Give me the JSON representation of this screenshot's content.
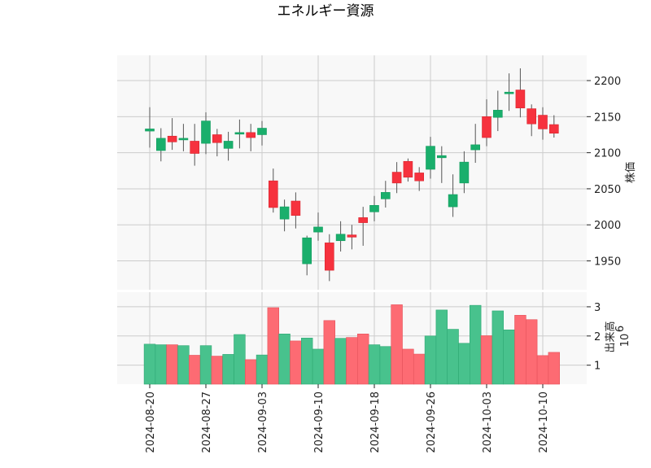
{
  "chart_data": {
    "type": "candlestick",
    "title": "エネルギー資源",
    "price_axis": {
      "label": "株価",
      "ylim": [
        1910,
        2235
      ],
      "ticks": [
        1950,
        2000,
        2050,
        2100,
        2150,
        2200
      ]
    },
    "volume_axis": {
      "label": "出来高",
      "unit": "10",
      "unit_exponent": "6",
      "ylim": [
        0.35,
        3.5
      ],
      "ticks": [
        1,
        2,
        3
      ]
    },
    "x_tick_labels": [
      "2024-08-20",
      "2024-08-27",
      "2024-09-03",
      "2024-09-10",
      "2024-09-18",
      "2024-09-26",
      "2024-10-03",
      "2024-10-10"
    ],
    "x_tick_indices": [
      0,
      5,
      10,
      15,
      20,
      25,
      30,
      35
    ],
    "colors": {
      "up": "#1aaf6c",
      "down": "#f6323e",
      "up_volume": "#48c28d",
      "down_volume": "#fd6b73",
      "wick": "#555555",
      "grid": "#cccccc",
      "panel_bg": "#f8f8f8"
    },
    "candles": [
      {
        "o": 2130,
        "h": 2163,
        "l": 2107,
        "c": 2133
      },
      {
        "o": 2103,
        "h": 2134,
        "l": 2088,
        "c": 2120
      },
      {
        "o": 2123,
        "h": 2148,
        "l": 2104,
        "c": 2115
      },
      {
        "o": 2118,
        "h": 2140,
        "l": 2102,
        "c": 2120
      },
      {
        "o": 2116,
        "h": 2140,
        "l": 2082,
        "c": 2099
      },
      {
        "o": 2113,
        "h": 2156,
        "l": 2098,
        "c": 2144
      },
      {
        "o": 2125,
        "h": 2133,
        "l": 2095,
        "c": 2114
      },
      {
        "o": 2106,
        "h": 2129,
        "l": 2089,
        "c": 2116
      },
      {
        "o": 2126,
        "h": 2146,
        "l": 2106,
        "c": 2128
      },
      {
        "o": 2128,
        "h": 2140,
        "l": 2102,
        "c": 2121
      },
      {
        "o": 2125,
        "h": 2144,
        "l": 2110,
        "c": 2134
      },
      {
        "o": 2061,
        "h": 2078,
        "l": 2017,
        "c": 2024
      },
      {
        "o": 2008,
        "h": 2035,
        "l": 1991,
        "c": 2025
      },
      {
        "o": 2033,
        "h": 2045,
        "l": 1995,
        "c": 2013
      },
      {
        "o": 1946,
        "h": 1985,
        "l": 1930,
        "c": 1982
      },
      {
        "o": 1990,
        "h": 2017,
        "l": 1978,
        "c": 1997
      },
      {
        "o": 1975,
        "h": 1987,
        "l": 1922,
        "c": 1937
      },
      {
        "o": 1978,
        "h": 2005,
        "l": 1963,
        "c": 1987
      },
      {
        "o": 1986,
        "h": 2000,
        "l": 1966,
        "c": 1983
      },
      {
        "o": 2010,
        "h": 2025,
        "l": 1971,
        "c": 2003
      },
      {
        "o": 2018,
        "h": 2040,
        "l": 2005,
        "c": 2027
      },
      {
        "o": 2036,
        "h": 2061,
        "l": 2024,
        "c": 2045
      },
      {
        "o": 2073,
        "h": 2087,
        "l": 2044,
        "c": 2058
      },
      {
        "o": 2088,
        "h": 2092,
        "l": 2060,
        "c": 2066
      },
      {
        "o": 2072,
        "h": 2080,
        "l": 2047,
        "c": 2061
      },
      {
        "o": 2077,
        "h": 2122,
        "l": 2064,
        "c": 2109
      },
      {
        "o": 2093,
        "h": 2109,
        "l": 2058,
        "c": 2096
      },
      {
        "o": 2025,
        "h": 2070,
        "l": 2011,
        "c": 2042
      },
      {
        "o": 2058,
        "h": 2102,
        "l": 2044,
        "c": 2087
      },
      {
        "o": 2104,
        "h": 2140,
        "l": 2086,
        "c": 2111
      },
      {
        "o": 2150,
        "h": 2174,
        "l": 2109,
        "c": 2121
      },
      {
        "o": 2149,
        "h": 2186,
        "l": 2130,
        "c": 2159
      },
      {
        "o": 2183,
        "h": 2210,
        "l": 2158,
        "c": 2184
      },
      {
        "o": 2187,
        "h": 2217,
        "l": 2149,
        "c": 2162
      },
      {
        "o": 2161,
        "h": 2167,
        "l": 2123,
        "c": 2140
      },
      {
        "o": 2152,
        "h": 2163,
        "l": 2118,
        "c": 2133
      },
      {
        "o": 2139,
        "h": 2152,
        "l": 2121,
        "c": 2127
      }
    ],
    "volumes": [
      1.72,
      1.7,
      1.7,
      1.67,
      1.34,
      1.67,
      1.31,
      1.37,
      2.05,
      1.19,
      1.35,
      2.97,
      2.07,
      1.83,
      1.93,
      1.55,
      2.53,
      1.92,
      1.95,
      2.07,
      1.7,
      1.64,
      3.07,
      1.55,
      1.38,
      2.0,
      2.89,
      2.23,
      1.75,
      3.05,
      2.01,
      2.86,
      2.21,
      2.71,
      2.56,
      1.33,
      1.44
    ]
  }
}
